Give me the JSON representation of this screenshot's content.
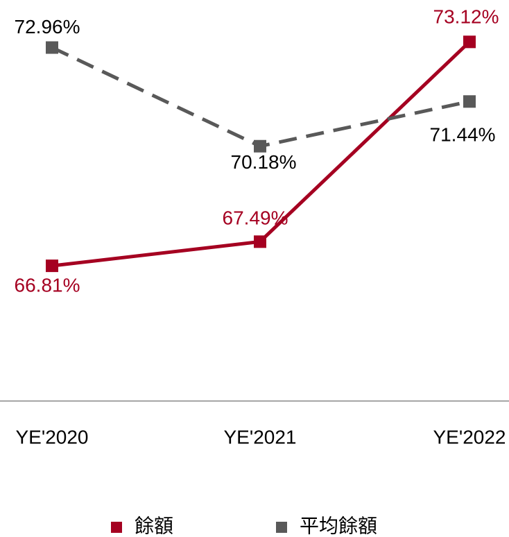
{
  "chart_data": {
    "type": "line",
    "categories": [
      "YE'2020",
      "YE'2021",
      "YE'2022"
    ],
    "series": [
      {
        "name": "餘額",
        "color": "#a50021",
        "dash": false,
        "values": [
          66.81,
          67.49,
          73.12
        ],
        "value_labels": [
          "66.81%",
          "67.49%",
          "73.12%"
        ]
      },
      {
        "name": "平均餘額",
        "color": "#595959",
        "dash": true,
        "values": [
          72.96,
          70.18,
          71.44
        ],
        "value_labels": [
          "72.96%",
          "70.18%",
          "71.44%"
        ]
      }
    ],
    "ylim": [
      63,
      74.3
    ],
    "legend": "bottom"
  }
}
